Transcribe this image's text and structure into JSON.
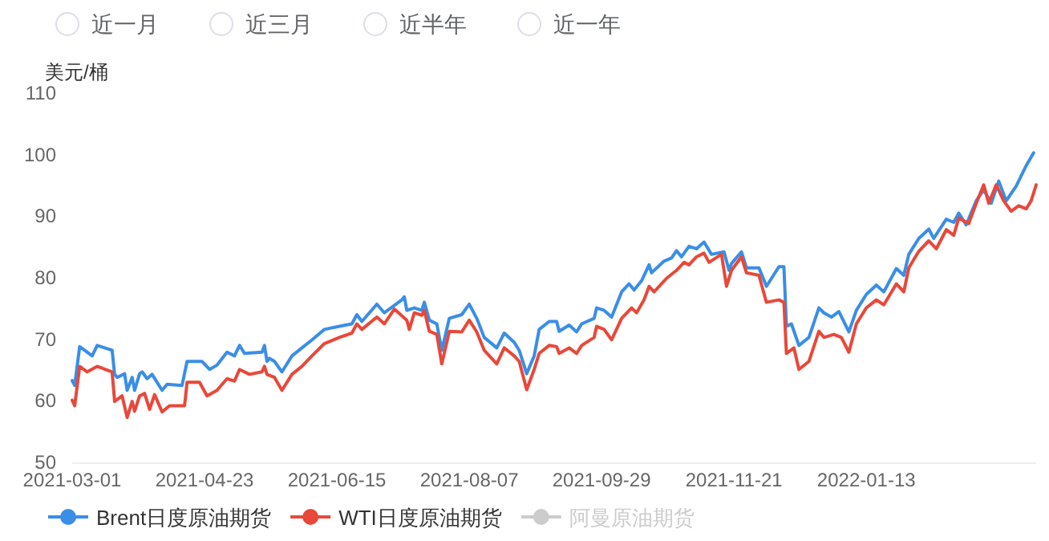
{
  "chart_data": {
    "type": "line",
    "ylabel": "美元/桶",
    "annotations": [
      "近一月",
      "近三月",
      "近半年",
      "近一年"
    ],
    "xlim": [
      "2021-03-01",
      "2022-03-22"
    ],
    "xticks": [
      "2021-03-01",
      "2021-04-23",
      "2021-06-15",
      "2021-08-07",
      "2021-09-29",
      "2021-11-21",
      "2022-01-13"
    ],
    "ylim": [
      50,
      110
    ],
    "yticks": [
      50,
      60,
      70,
      80,
      90,
      100,
      110
    ],
    "grid": false,
    "legend": "bottom",
    "series": [
      {
        "name": "Brent日度原油期货",
        "color": "#3a8ee6",
        "x": [
          "2021-03-01",
          "2021-03-02",
          "2021-03-04",
          "2021-03-06",
          "2021-03-09",
          "2021-03-11",
          "2021-03-17",
          "2021-03-18",
          "2021-03-19",
          "2021-03-22",
          "2021-03-23",
          "2021-03-25",
          "2021-03-26",
          "2021-03-28",
          "2021-03-29",
          "2021-03-31",
          "2021-04-02",
          "2021-04-06",
          "2021-04-08",
          "2021-04-14",
          "2021-04-16",
          "2021-04-22",
          "2021-04-25",
          "2021-04-28",
          "2021-05-02",
          "2021-05-05",
          "2021-05-07",
          "2021-05-09",
          "2021-05-16",
          "2021-05-17",
          "2021-05-18",
          "2021-05-19",
          "2021-05-21",
          "2021-05-24",
          "2021-05-28",
          "2021-06-01",
          "2021-06-05",
          "2021-06-10",
          "2021-06-16",
          "2021-06-21",
          "2021-06-23",
          "2021-06-25",
          "2021-07-01",
          "2021-07-04",
          "2021-07-11",
          "2021-07-12",
          "2021-07-13",
          "2021-07-16",
          "2021-07-19",
          "2021-07-20",
          "2021-07-22",
          "2021-07-25",
          "2021-07-27",
          "2021-07-30",
          "2021-08-04",
          "2021-08-07",
          "2021-08-10",
          "2021-08-13",
          "2021-08-18",
          "2021-08-21",
          "2021-08-25",
          "2021-08-27",
          "2021-08-30",
          "2021-09-02",
          "2021-09-04",
          "2021-09-08",
          "2021-09-11",
          "2021-09-12",
          "2021-09-16",
          "2021-09-19",
          "2021-09-21",
          "2021-09-26",
          "2021-09-27",
          "2021-09-30",
          "2021-10-03",
          "2021-10-07",
          "2021-10-10",
          "2021-10-12",
          "2021-10-15",
          "2021-10-18",
          "2021-10-19",
          "2021-10-24",
          "2021-10-27",
          "2021-10-29",
          "2021-10-31",
          "2021-11-03",
          "2021-11-06",
          "2021-11-09",
          "2021-11-12",
          "2021-11-17",
          "2021-11-19",
          "2021-11-20",
          "2021-11-24",
          "2021-11-26",
          "2021-12-01",
          "2021-12-04",
          "2021-12-09",
          "2021-12-11",
          "2021-12-12",
          "2021-12-14",
          "2021-12-17",
          "2021-12-21",
          "2021-12-25",
          "2021-12-27",
          "2021-12-30",
          "2022-01-02",
          "2022-01-06",
          "2022-01-09",
          "2022-01-13",
          "2022-01-17",
          "2022-01-20",
          "2022-01-25",
          "2022-01-28",
          "2022-01-30",
          "2022-02-03",
          "2022-02-07",
          "2022-02-09",
          "2022-02-14",
          "2022-02-17",
          "2022-02-19",
          "2022-02-22",
          "2022-02-26",
          "2022-03-01",
          "2022-03-04",
          "2022-03-07",
          "2022-03-10",
          "2022-03-14",
          "2022-03-18",
          "2022-03-21"
        ],
        "values": [
          63.3,
          62.5,
          68.8,
          68.2,
          67.3,
          69.0,
          68.2,
          64.3,
          63.8,
          64.4,
          61.7,
          63.8,
          61.7,
          64.4,
          64.7,
          63.6,
          64.3,
          61.7,
          62.7,
          62.5,
          66.4,
          66.4,
          65.1,
          65.8,
          67.9,
          67.3,
          69.0,
          67.7,
          67.9,
          69.0,
          66.4,
          66.9,
          66.4,
          64.7,
          67.3,
          68.6,
          69.9,
          71.6,
          72.1,
          72.5,
          74.0,
          72.9,
          75.7,
          74.3,
          76.4,
          76.9,
          74.7,
          75.1,
          74.7,
          76.0,
          73.1,
          72.5,
          68.2,
          73.4,
          74.0,
          75.7,
          73.4,
          70.3,
          68.6,
          71.0,
          69.5,
          68.2,
          64.4,
          67.3,
          71.6,
          72.9,
          72.9,
          71.3,
          72.3,
          71.2,
          72.5,
          73.4,
          75.1,
          74.7,
          73.6,
          77.7,
          79.0,
          78.0,
          79.5,
          82.1,
          80.8,
          82.7,
          83.2,
          84.4,
          83.4,
          85.1,
          84.7,
          85.8,
          83.8,
          84.2,
          81.2,
          82.3,
          84.2,
          81.6,
          81.6,
          78.6,
          81.8,
          81.8,
          72.1,
          72.5,
          69.0,
          70.3,
          75.1,
          74.3,
          73.6,
          74.5,
          71.2,
          74.7,
          77.3,
          78.8,
          77.7,
          81.5,
          80.4,
          83.8,
          86.4,
          87.9,
          86.4,
          89.5,
          89.0,
          90.5,
          88.6,
          92.5,
          94.3,
          92.1,
          95.7,
          92.5,
          94.9,
          98.2,
          100.3
        ]
      },
      {
        "name": "WTI日度原油期货",
        "color": "#e8483a",
        "x": [
          "2021-03-01",
          "2021-03-02",
          "2021-03-04",
          "2021-03-07",
          "2021-03-11",
          "2021-03-17",
          "2021-03-18",
          "2021-03-21",
          "2021-03-23",
          "2021-03-25",
          "2021-03-26",
          "2021-03-28",
          "2021-03-30",
          "2021-04-01",
          "2021-04-03",
          "2021-04-06",
          "2021-04-09",
          "2021-04-15",
          "2021-04-16",
          "2021-04-21",
          "2021-04-24",
          "2021-04-28",
          "2021-05-02",
          "2021-05-05",
          "2021-05-07",
          "2021-05-11",
          "2021-05-16",
          "2021-05-17",
          "2021-05-18",
          "2021-05-21",
          "2021-05-24",
          "2021-05-28",
          "2021-06-01",
          "2021-06-05",
          "2021-06-10",
          "2021-06-16",
          "2021-06-21",
          "2021-06-23",
          "2021-06-25",
          "2021-07-01",
          "2021-07-04",
          "2021-07-08",
          "2021-07-13",
          "2021-07-14",
          "2021-07-16",
          "2021-07-19",
          "2021-07-20",
          "2021-07-22",
          "2021-07-25",
          "2021-07-27",
          "2021-07-30",
          "2021-08-04",
          "2021-08-07",
          "2021-08-10",
          "2021-08-13",
          "2021-08-18",
          "2021-08-21",
          "2021-08-25",
          "2021-08-27",
          "2021-08-30",
          "2021-09-02",
          "2021-09-04",
          "2021-09-08",
          "2021-09-11",
          "2021-09-12",
          "2021-09-16",
          "2021-09-19",
          "2021-09-21",
          "2021-09-26",
          "2021-09-27",
          "2021-09-30",
          "2021-10-03",
          "2021-10-07",
          "2021-10-11",
          "2021-10-13",
          "2021-10-16",
          "2021-10-18",
          "2021-10-20",
          "2021-10-25",
          "2021-10-29",
          "2021-11-01",
          "2021-11-03",
          "2021-11-06",
          "2021-11-09",
          "2021-11-11",
          "2021-11-16",
          "2021-11-18",
          "2021-11-20",
          "2021-11-24",
          "2021-11-26",
          "2021-12-01",
          "2021-12-04",
          "2021-12-09",
          "2021-12-11",
          "2021-12-12",
          "2021-12-15",
          "2021-12-17",
          "2021-12-21",
          "2021-12-25",
          "2021-12-27",
          "2021-12-31",
          "2022-01-03",
          "2022-01-06",
          "2022-01-09",
          "2022-01-13",
          "2022-01-17",
          "2022-01-20",
          "2022-01-25",
          "2022-01-28",
          "2022-01-30",
          "2022-02-03",
          "2022-02-07",
          "2022-02-10",
          "2022-02-14",
          "2022-02-17",
          "2022-02-19",
          "2022-02-23",
          "2022-02-26",
          "2022-03-01",
          "2022-03-03",
          "2022-03-06",
          "2022-03-09",
          "2022-03-12",
          "2022-03-15",
          "2022-03-18",
          "2022-03-20",
          "2022-03-22"
        ],
        "values": [
          60.1,
          59.2,
          65.6,
          64.7,
          65.6,
          64.7,
          59.9,
          60.8,
          57.3,
          59.9,
          58.3,
          60.8,
          61.2,
          58.6,
          61.0,
          58.2,
          59.2,
          59.2,
          63.0,
          63.0,
          60.8,
          61.7,
          63.6,
          63.2,
          65.1,
          64.3,
          64.7,
          65.6,
          64.3,
          63.8,
          61.7,
          64.3,
          65.6,
          67.3,
          69.3,
          70.3,
          71.0,
          72.5,
          71.6,
          73.6,
          72.5,
          74.9,
          73.1,
          71.6,
          74.3,
          73.9,
          74.7,
          71.3,
          70.8,
          66.0,
          71.3,
          71.2,
          73.1,
          71.2,
          68.2,
          66.0,
          68.6,
          67.3,
          66.4,
          61.8,
          65.1,
          67.7,
          69.0,
          68.8,
          67.7,
          68.6,
          67.7,
          69.0,
          70.3,
          72.1,
          71.6,
          69.9,
          73.4,
          75.1,
          74.3,
          76.4,
          78.6,
          77.7,
          79.9,
          81.2,
          82.5,
          82.1,
          83.4,
          84.0,
          82.5,
          83.8,
          78.6,
          81.2,
          83.4,
          80.8,
          80.4,
          76.0,
          76.4,
          76.0,
          67.7,
          68.6,
          65.1,
          66.4,
          71.3,
          70.3,
          70.8,
          70.3,
          67.9,
          72.5,
          75.1,
          76.4,
          75.6,
          79.0,
          77.7,
          81.6,
          84.3,
          86.0,
          84.7,
          87.8,
          86.9,
          89.7,
          88.8,
          92.1,
          95.1,
          92.1,
          95.1,
          92.5,
          90.8,
          91.7,
          91.2,
          92.5,
          95.1
        ]
      },
      {
        "name": "阿曼原油期货",
        "color": "#cccccc"
      }
    ]
  }
}
